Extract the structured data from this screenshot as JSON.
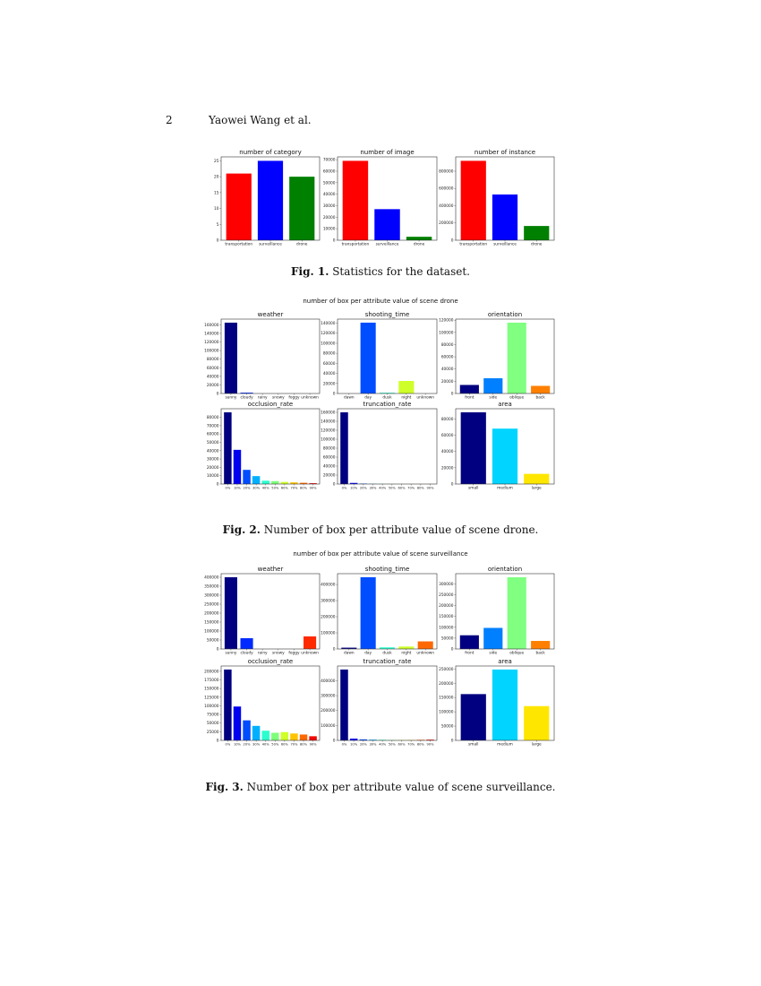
{
  "header": {
    "page_number": "2",
    "running_head": "Yaowei Wang et al."
  },
  "figures": [
    {
      "label": "Fig. 1.",
      "caption": "Statistics for the dataset."
    },
    {
      "label": "Fig. 2.",
      "caption": "Number of box per attribute value of scene drone.",
      "suptitle": "number of box per attribute value of scene drone"
    },
    {
      "label": "Fig. 3.",
      "caption": "Number of box per attribute value of scene surveillance.",
      "suptitle": "number of box per attribute value of scene surveillance"
    }
  ],
  "chart_data": [
    {
      "type": "bar",
      "figure": 1,
      "title": "number of category",
      "categories": [
        "transportation",
        "surveillance",
        "drone"
      ],
      "values": [
        21,
        25,
        20
      ],
      "ylim": [
        0,
        26.25
      ],
      "yticks": [
        0,
        5,
        10,
        15,
        20,
        25
      ],
      "colors": [
        "#ff0000",
        "#0000ff",
        "#008000"
      ]
    },
    {
      "type": "bar",
      "figure": 1,
      "title": "number of image",
      "categories": [
        "transportation",
        "surveillance",
        "drone"
      ],
      "values": [
        69000,
        27000,
        3000
      ],
      "ylim": [
        0,
        72450
      ],
      "yticks": [
        0,
        10000,
        20000,
        30000,
        40000,
        50000,
        60000,
        70000
      ],
      "colors": [
        "#ff0000",
        "#0000ff",
        "#008000"
      ]
    },
    {
      "type": "bar",
      "figure": 1,
      "title": "number of instance",
      "categories": [
        "transportation",
        "surveillance",
        "drone"
      ],
      "values": [
        920000,
        530000,
        165000
      ],
      "ylim": [
        0,
        966000
      ],
      "yticks": [
        0,
        200000,
        400000,
        600000,
        800000
      ],
      "colors": [
        "#ff0000",
        "#0000ff",
        "#008000"
      ]
    },
    {
      "type": "bar",
      "figure": 2,
      "title": "weather",
      "categories": [
        "sunny",
        "cloudy",
        "rainy",
        "snowy",
        "foggy",
        "unknown"
      ],
      "values": [
        165000,
        2000,
        0,
        0,
        0,
        0
      ],
      "ylim": [
        0,
        173250
      ],
      "yticks": [
        0,
        20000,
        40000,
        60000,
        80000,
        100000,
        120000,
        140000,
        160000
      ],
      "colors": [
        "#000080",
        "#002aff",
        "#00d4ff",
        "#80ff80",
        "#ffd400",
        "#ff2a00"
      ]
    },
    {
      "type": "bar",
      "figure": 2,
      "title": "shooting_time",
      "categories": [
        "dawn",
        "day",
        "dusk",
        "night",
        "unknown"
      ],
      "values": [
        0,
        141000,
        1500,
        25000,
        0
      ],
      "ylim": [
        0,
        148050
      ],
      "yticks": [
        0,
        20000,
        40000,
        60000,
        80000,
        100000,
        120000,
        140000
      ],
      "colors": [
        "#000080",
        "#004cff",
        "#29ffce",
        "#ceff29",
        "#ff6800"
      ]
    },
    {
      "type": "bar",
      "figure": 2,
      "title": "orientation",
      "categories": [
        "front",
        "side",
        "oblique",
        "back"
      ],
      "values": [
        14000,
        25000,
        116000,
        12500
      ],
      "ylim": [
        0,
        121800
      ],
      "yticks": [
        0,
        20000,
        40000,
        60000,
        80000,
        100000,
        120000
      ],
      "colors": [
        "#000080",
        "#0080ff",
        "#80ff80",
        "#ff8000"
      ]
    },
    {
      "type": "bar",
      "figure": 2,
      "title": "occlusion_rate",
      "categories": [
        "0%",
        "10%",
        "20%",
        "30%",
        "40%",
        "50%",
        "60%",
        "70%",
        "80%",
        "90%"
      ],
      "values": [
        86000,
        41000,
        17000,
        9500,
        4000,
        3500,
        2500,
        2000,
        1500,
        1000
      ],
      "ylim": [
        0,
        90300
      ],
      "yticks": [
        0,
        10000,
        20000,
        30000,
        40000,
        50000,
        60000,
        70000,
        80000
      ],
      "colors": [
        "#000080",
        "#0000f1",
        "#004cff",
        "#00b0ff",
        "#29ffce",
        "#7dff7a",
        "#ceff29",
        "#ffc400",
        "#ff6800",
        "#f10800"
      ]
    },
    {
      "type": "bar",
      "figure": 2,
      "title": "truncation_rate",
      "categories": [
        "0%",
        "10%",
        "20%",
        "30%",
        "40%",
        "50%",
        "60%",
        "70%",
        "80%",
        "90%"
      ],
      "values": [
        160000,
        2500,
        1000,
        500,
        300,
        200,
        100,
        100,
        100,
        100
      ],
      "ylim": [
        0,
        168000
      ],
      "yticks": [
        0,
        20000,
        40000,
        60000,
        80000,
        100000,
        120000,
        140000,
        160000
      ],
      "colors": [
        "#000080",
        "#0000f1",
        "#004cff",
        "#00b0ff",
        "#29ffce",
        "#7dff7a",
        "#ceff29",
        "#ffc400",
        "#ff6800",
        "#f10800"
      ]
    },
    {
      "type": "bar",
      "figure": 2,
      "title": "area",
      "categories": [
        "small",
        "medium",
        "large"
      ],
      "values": [
        88000,
        68000,
        12500
      ],
      "ylim": [
        0,
        92400
      ],
      "yticks": [
        0,
        20000,
        40000,
        60000,
        80000
      ],
      "colors": [
        "#000080",
        "#00d4ff",
        "#ffe600"
      ]
    },
    {
      "type": "bar",
      "figure": 3,
      "title": "weather",
      "categories": [
        "sunny",
        "cloudy",
        "rainy",
        "snowy",
        "foggy",
        "unknown"
      ],
      "values": [
        400000,
        60000,
        0,
        0,
        0,
        70000
      ],
      "ylim": [
        0,
        420000
      ],
      "yticks": [
        0,
        50000,
        100000,
        150000,
        200000,
        250000,
        300000,
        350000,
        400000
      ],
      "colors": [
        "#000080",
        "#002aff",
        "#00d4ff",
        "#80ff80",
        "#ffd400",
        "#ff2a00"
      ]
    },
    {
      "type": "bar",
      "figure": 3,
      "title": "shooting_time",
      "categories": [
        "dawn",
        "day",
        "dusk",
        "night",
        "unknown"
      ],
      "values": [
        8000,
        445000,
        10000,
        15000,
        47000
      ],
      "ylim": [
        0,
        467250
      ],
      "yticks": [
        0,
        100000,
        200000,
        300000,
        400000
      ],
      "colors": [
        "#000080",
        "#004cff",
        "#29ffce",
        "#ceff29",
        "#ff6800"
      ]
    },
    {
      "type": "bar",
      "figure": 3,
      "title": "orientation",
      "categories": [
        "front",
        "side",
        "oblique",
        "back"
      ],
      "values": [
        63000,
        97000,
        330000,
        37000
      ],
      "ylim": [
        0,
        346500
      ],
      "yticks": [
        0,
        50000,
        100000,
        150000,
        200000,
        250000,
        300000
      ],
      "colors": [
        "#000080",
        "#0080ff",
        "#80ff80",
        "#ff8000"
      ]
    },
    {
      "type": "bar",
      "figure": 3,
      "title": "occlusion_rate",
      "categories": [
        "0%",
        "10%",
        "20%",
        "30%",
        "40%",
        "50%",
        "60%",
        "70%",
        "80%",
        "90%"
      ],
      "values": [
        205000,
        98000,
        58000,
        42000,
        28000,
        22000,
        24000,
        20000,
        17000,
        12000
      ],
      "ylim": [
        0,
        215250
      ],
      "yticks": [
        0,
        25000,
        50000,
        75000,
        100000,
        125000,
        150000,
        175000,
        200000
      ],
      "colors": [
        "#000080",
        "#0000f1",
        "#004cff",
        "#00b0ff",
        "#29ffce",
        "#7dff7a",
        "#ceff29",
        "#ffc400",
        "#ff6800",
        "#f10800"
      ]
    },
    {
      "type": "bar",
      "figure": 3,
      "title": "truncation_rate",
      "categories": [
        "0%",
        "10%",
        "20%",
        "30%",
        "40%",
        "50%",
        "60%",
        "70%",
        "80%",
        "90%"
      ],
      "values": [
        475000,
        12000,
        7000,
        5000,
        4000,
        3000,
        3000,
        3000,
        4000,
        5000
      ],
      "ylim": [
        0,
        498750
      ],
      "yticks": [
        0,
        100000,
        200000,
        300000,
        400000
      ],
      "colors": [
        "#000080",
        "#0000f1",
        "#004cff",
        "#00b0ff",
        "#29ffce",
        "#7dff7a",
        "#ceff29",
        "#ffc400",
        "#ff6800",
        "#f10800"
      ]
    },
    {
      "type": "bar",
      "figure": 3,
      "title": "area",
      "categories": [
        "small",
        "medium",
        "large"
      ],
      "values": [
        162000,
        248000,
        120000
      ],
      "ylim": [
        0,
        260400
      ],
      "yticks": [
        0,
        50000,
        100000,
        150000,
        200000,
        250000
      ],
      "colors": [
        "#000080",
        "#00d4ff",
        "#ffe600"
      ]
    }
  ]
}
